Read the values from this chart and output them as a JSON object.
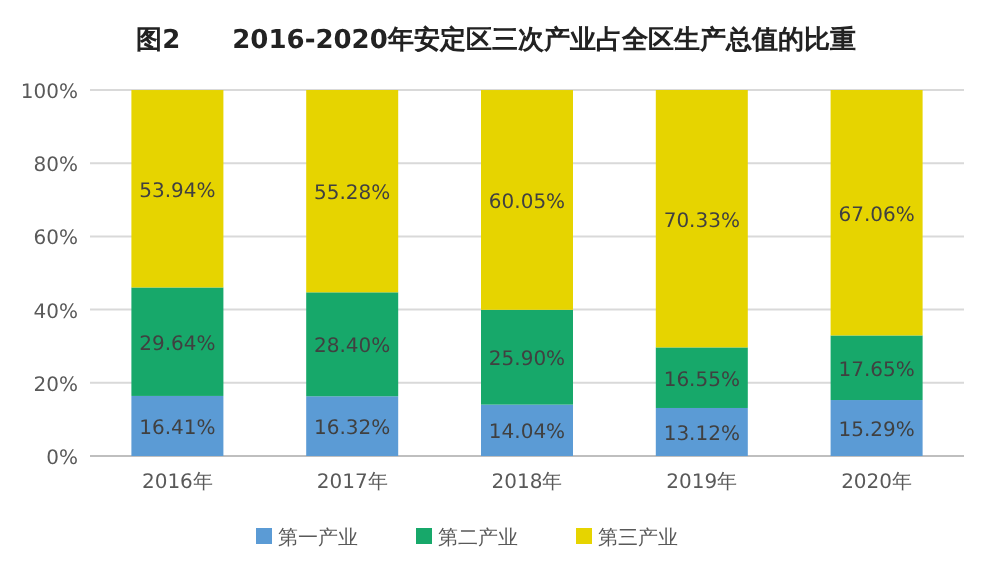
{
  "chart_data": {
    "type": "bar",
    "stacked": true,
    "title": "图2　　2016-2020年安定区三次产业占全区生产总值的比重",
    "categories": [
      "2016年",
      "2017年",
      "2018年",
      "2019年",
      "2020年"
    ],
    "ylim": [
      0,
      100
    ],
    "yticks": [
      {
        "value": 0,
        "label": "0%"
      },
      {
        "value": 20,
        "label": "20%"
      },
      {
        "value": 40,
        "label": "40%"
      },
      {
        "value": 60,
        "label": "60%"
      },
      {
        "value": 80,
        "label": "80%"
      },
      {
        "value": 100,
        "label": "100%"
      }
    ],
    "grid": "y",
    "legend": "bottom",
    "series": [
      {
        "name": "第一产业",
        "color": "#5b9bd5",
        "values": [
          16.41,
          16.32,
          14.04,
          13.12,
          15.29
        ],
        "value_labels": [
          "16.41%",
          "16.32%",
          "14.04%",
          "13.12%",
          "15.29%"
        ]
      },
      {
        "name": "第二产业",
        "color": "#17a86a",
        "values": [
          29.64,
          28.4,
          25.9,
          16.55,
          17.65
        ],
        "value_labels": [
          "29.64%",
          "28.40%",
          "25.90%",
          "16.55%",
          "17.65%"
        ]
      },
      {
        "name": "第三产业",
        "color": "#e6d400",
        "values": [
          53.94,
          55.28,
          60.05,
          70.33,
          67.06
        ],
        "value_labels": [
          "53.94%",
          "55.28%",
          "60.05%",
          "70.33%",
          "67.06%"
        ]
      }
    ]
  }
}
